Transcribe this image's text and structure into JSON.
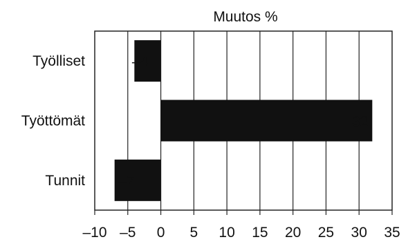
{
  "chart_data": {
    "type": "bar",
    "orientation": "horizontal",
    "title": "Muutos %",
    "xlabel": "",
    "ylabel": "",
    "categories": [
      "Työlliset",
      "Työttömät",
      "Tunnit"
    ],
    "values": [
      -4,
      32,
      -7
    ],
    "data_labels": [
      "–4",
      "32",
      "–7"
    ],
    "xlim": [
      -10,
      35
    ],
    "xticks": [
      -10,
      -5,
      0,
      5,
      10,
      15,
      20,
      25,
      30,
      35
    ],
    "xtick_labels": [
      "–10",
      "–5",
      "0",
      "5",
      "10",
      "15",
      "20",
      "25",
      "30",
      "35"
    ],
    "grid": "vertical",
    "legend": "none",
    "colors": {
      "bar": "#111111",
      "grid": "#222222",
      "background": "#ffffff",
      "data_label_inside": "#ffffff"
    }
  }
}
